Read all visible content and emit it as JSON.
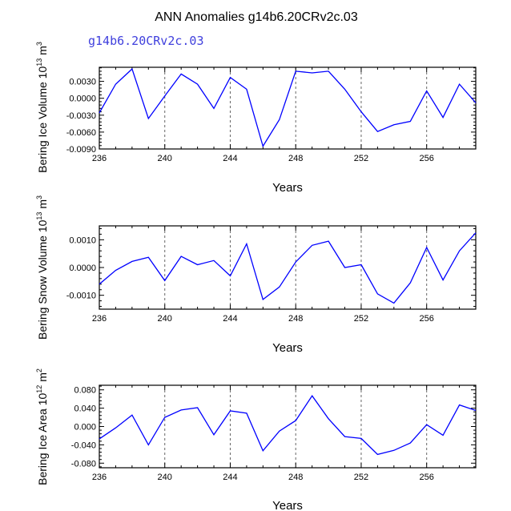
{
  "figure": {
    "title": "ANN Anomalies g14b6.20CRv2c.03",
    "subtitle": "g14b6.20CRv2c.03",
    "line_color": "#0000ff",
    "subtitle_color": "#4040dd"
  },
  "chart_data": [
    {
      "type": "line",
      "name": "ice-volume",
      "ylabel": {
        "main": "Bering Ice Volume 10",
        "exp": "13",
        "unit": " m",
        "unit_exp": "3"
      },
      "xlabel": "Years",
      "xlim": [
        236,
        259
      ],
      "ylim": [
        -0.009,
        0.0055
      ],
      "xticks": [
        236,
        240,
        244,
        248,
        252,
        256
      ],
      "yticks": [
        0.003,
        0.0,
        -0.003,
        -0.006,
        -0.009
      ],
      "ytick_labels": [
        "0.0030",
        "0.0000",
        "-0.0030",
        "-0.0060",
        "-0.0090"
      ],
      "grid_x": [
        240,
        244,
        248,
        252,
        256
      ],
      "x": [
        236,
        237,
        238,
        239,
        240,
        241,
        242,
        243,
        244,
        245,
        246,
        247,
        248,
        249,
        250,
        251,
        252,
        253,
        254,
        255,
        256,
        257,
        258,
        259
      ],
      "values": [
        -0.0026,
        0.0025,
        0.0052,
        -0.0036,
        0.0004,
        0.0043,
        0.0025,
        -0.0018,
        0.0037,
        0.0016,
        -0.0085,
        -0.0038,
        0.0048,
        0.0045,
        0.0048,
        0.0016,
        -0.0024,
        -0.0059,
        -0.0047,
        -0.0041,
        0.0013,
        -0.0034,
        0.0025,
        -0.0008
      ]
    },
    {
      "type": "line",
      "name": "snow-volume",
      "ylabel": {
        "main": "Bering Snow Volume 10",
        "exp": "13",
        "unit": " m",
        "unit_exp": "3"
      },
      "xlabel": "Years",
      "xlim": [
        236,
        259
      ],
      "ylim": [
        -0.0015,
        0.0015
      ],
      "xticks": [
        236,
        240,
        244,
        248,
        252,
        256
      ],
      "yticks": [
        0.001,
        0.0,
        -0.001
      ],
      "ytick_labels": [
        "0.0010",
        "0.0000",
        "-0.0010"
      ],
      "grid_x": [
        240,
        244,
        248,
        252,
        256
      ],
      "x": [
        236,
        237,
        238,
        239,
        240,
        241,
        242,
        243,
        244,
        245,
        246,
        247,
        248,
        249,
        250,
        251,
        252,
        253,
        254,
        255,
        256,
        257,
        258,
        259
      ],
      "values": [
        -0.0006,
        -0.0001,
        0.00022,
        0.00037,
        -0.00047,
        0.0004,
        0.0001,
        0.00025,
        -0.0003,
        0.00085,
        -0.00115,
        -0.0007,
        0.0002,
        0.0008,
        0.00095,
        0.0,
        0.0001,
        -0.00095,
        -0.00128,
        -0.00055,
        0.00072,
        -0.00045,
        0.0006,
        0.00125
      ]
    },
    {
      "type": "line",
      "name": "ice-area",
      "ylabel": {
        "main": "Bering Ice Area 10",
        "exp": "12",
        "unit": " m",
        "unit_exp": "2"
      },
      "xlabel": "Years",
      "xlim": [
        236,
        259
      ],
      "ylim": [
        -0.09,
        0.09
      ],
      "xticks": [
        236,
        240,
        244,
        248,
        252,
        256
      ],
      "yticks": [
        0.08,
        0.04,
        0.0,
        -0.04,
        -0.08
      ],
      "ytick_labels": [
        "0.080",
        "0.040",
        "0.000",
        "-0.040",
        "-0.080"
      ],
      "grid_x": [
        240,
        244,
        248,
        252,
        256
      ],
      "x": [
        236,
        237,
        238,
        239,
        240,
        241,
        242,
        243,
        244,
        245,
        246,
        247,
        248,
        249,
        250,
        251,
        252,
        253,
        254,
        255,
        256,
        257,
        258,
        259
      ],
      "values": [
        -0.027,
        -0.003,
        0.025,
        -0.04,
        0.02,
        0.036,
        0.041,
        -0.018,
        0.034,
        0.029,
        -0.053,
        -0.01,
        0.013,
        0.067,
        0.017,
        -0.022,
        -0.026,
        -0.061,
        -0.052,
        -0.036,
        0.004,
        -0.019,
        0.047,
        0.035
      ]
    }
  ]
}
